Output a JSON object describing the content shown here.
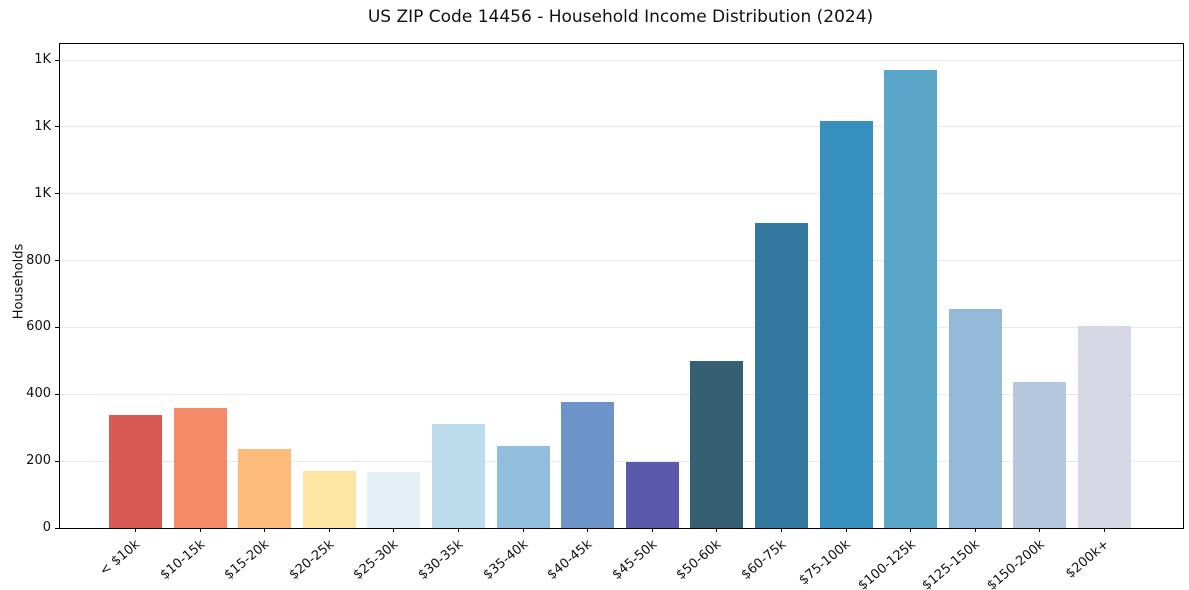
{
  "chart_data": {
    "type": "bar",
    "title": "US ZIP Code 14456 - Household Income Distribution (2024)",
    "xlabel": "",
    "ylabel": "Households",
    "categories": [
      "< $10k",
      "$10-15k",
      "$15-20k",
      "$20-25k",
      "$25-30k",
      "$30-35k",
      "$35-40k",
      "$40-45k",
      "$45-50k",
      "$50-60k",
      "$60-75k",
      "$75-100k",
      "$100-125k",
      "$125-150k",
      "$150-200k",
      "$200k+"
    ],
    "values": [
      338,
      358,
      236,
      172,
      168,
      310,
      246,
      376,
      197,
      500,
      913,
      1218,
      1370,
      654,
      436,
      605
    ],
    "bar_colors": [
      "#d95a52",
      "#f48a68",
      "#fcba7b",
      "#fde5a4",
      "#e4eff6",
      "#bcdcec",
      "#92bedd",
      "#6d94c9",
      "#5b59aa",
      "#355f72",
      "#33799f",
      "#378fc0",
      "#5aa6c9",
      "#93b8d8",
      "#b5c7df",
      "#d6d8e6"
    ],
    "y_ticks": {
      "values": [
        0,
        200,
        400,
        600,
        800,
        1000,
        1200,
        1400
      ],
      "labels": [
        "0",
        "200",
        "400",
        "600",
        "800",
        "1K",
        "1K",
        "1K"
      ]
    },
    "ylim": [
      0,
      1448
    ],
    "grid": "horizontal",
    "legend": "none",
    "background_color": "#ffffff",
    "grid_color": "#e8e8e8",
    "spine_color": "#000000"
  }
}
